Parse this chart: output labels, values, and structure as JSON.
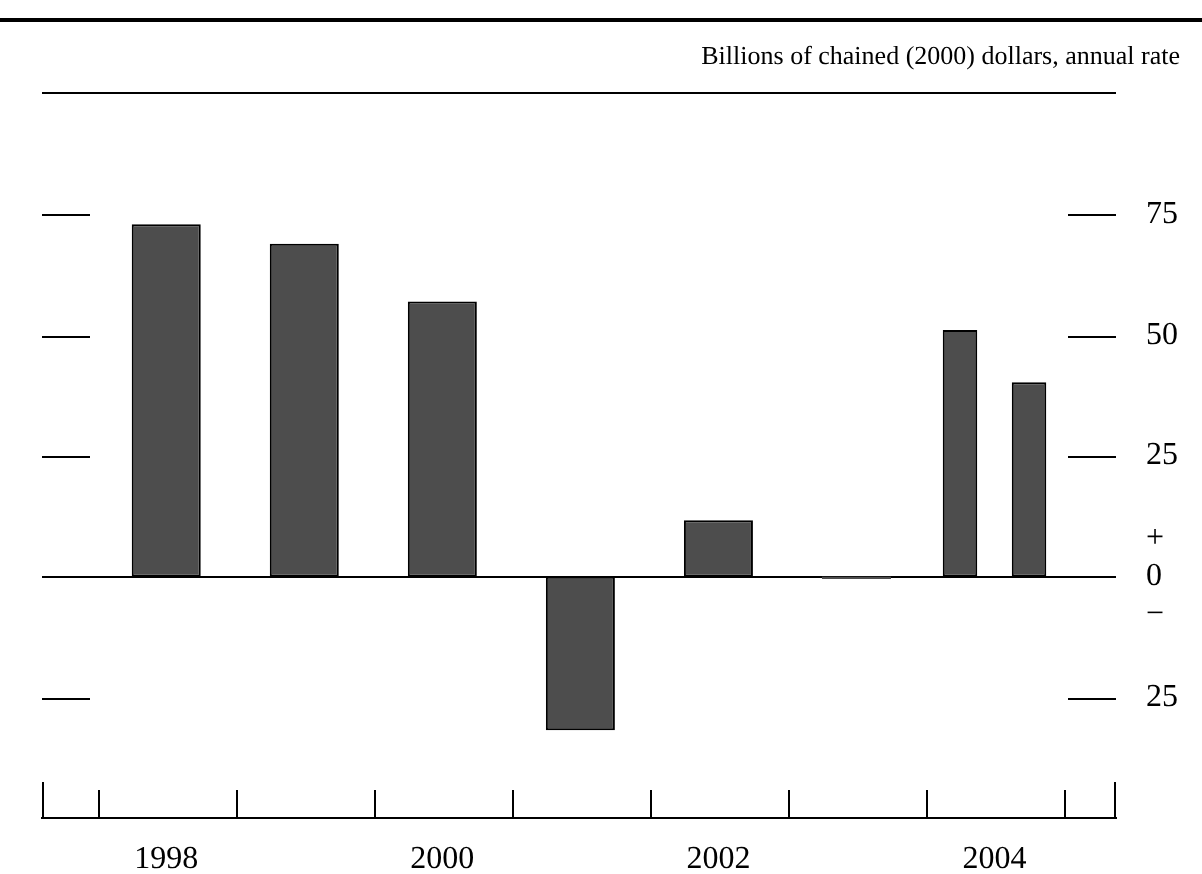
{
  "chart_data": {
    "type": "bar",
    "ylabel": "Billions of chained (2000) dollars, annual rate",
    "x": [
      1998,
      1999,
      2000,
      2001,
      2002,
      2003,
      2003.75,
      2004.25
    ],
    "values": [
      73,
      69,
      57,
      -31.8,
      11.7,
      -0.5,
      51.1,
      40.3
    ],
    "color": "#4d4d4d",
    "xlim": [
      1997.1,
      2004.88
    ],
    "xticks": [
      {
        "value": 1997.5,
        "label": null
      },
      1998,
      {
        "value": 1998.5,
        "label": null
      },
      {
        "value": 1999.5,
        "label": null
      },
      2000,
      {
        "value": 2000.5,
        "label": null
      },
      {
        "value": 2001.5,
        "label": null
      },
      2002,
      {
        "value": 2002.5,
        "label": null
      },
      {
        "value": 2003.5,
        "label": null
      },
      2004,
      {
        "value": 2004.5,
        "label": null
      }
    ],
    "ylim": [
      -50,
      100
    ],
    "yticks": [
      {
        "value": -25,
        "label": "25"
      },
      {
        "value": 0,
        "label": "+\n0\n−"
      },
      25,
      50,
      75
    ]
  }
}
